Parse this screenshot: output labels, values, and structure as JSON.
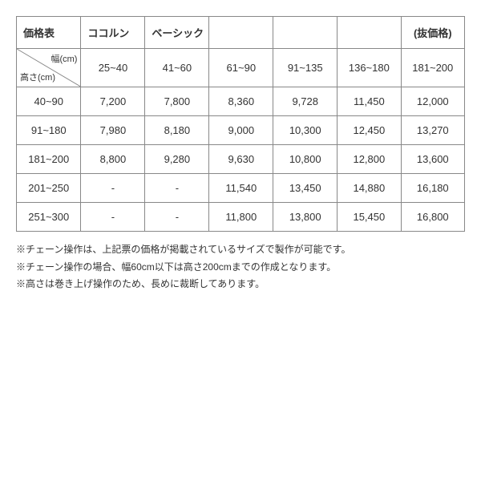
{
  "title": "価格表",
  "subtitle1": "ココルン",
  "subtitle2": "ベーシック",
  "price_note": "(抜価格)",
  "diag_top": "幅(cm)",
  "diag_bottom": "高さ(cm)",
  "width_ranges": [
    "25~40",
    "41~60",
    "61~90",
    "91~135",
    "136~180",
    "181~200"
  ],
  "height_ranges": [
    "40~90",
    "91~180",
    "181~200",
    "201~250",
    "251~300"
  ],
  "prices": [
    [
      "7,200",
      "7,800",
      "8,360",
      "9,728",
      "11,450",
      "12,000"
    ],
    [
      "7,980",
      "8,180",
      "9,000",
      "10,300",
      "12,450",
      "13,270"
    ],
    [
      "8,800",
      "9,280",
      "9,630",
      "10,800",
      "12,800",
      "13,600"
    ],
    [
      "-",
      "-",
      "11,540",
      "13,450",
      "14,880",
      "16,180"
    ],
    [
      "-",
      "-",
      "11,800",
      "13,800",
      "15,450",
      "16,800"
    ]
  ],
  "notes": [
    "※チェーン操作は、上記票の価格が掲載されているサイズで製作が可能です。",
    "※チェーン操作の場合、幅60cm以下は高さ200cmまでの作成となります。",
    "※高さは巻き上げ操作のため、長めに裁断してあります。"
  ]
}
